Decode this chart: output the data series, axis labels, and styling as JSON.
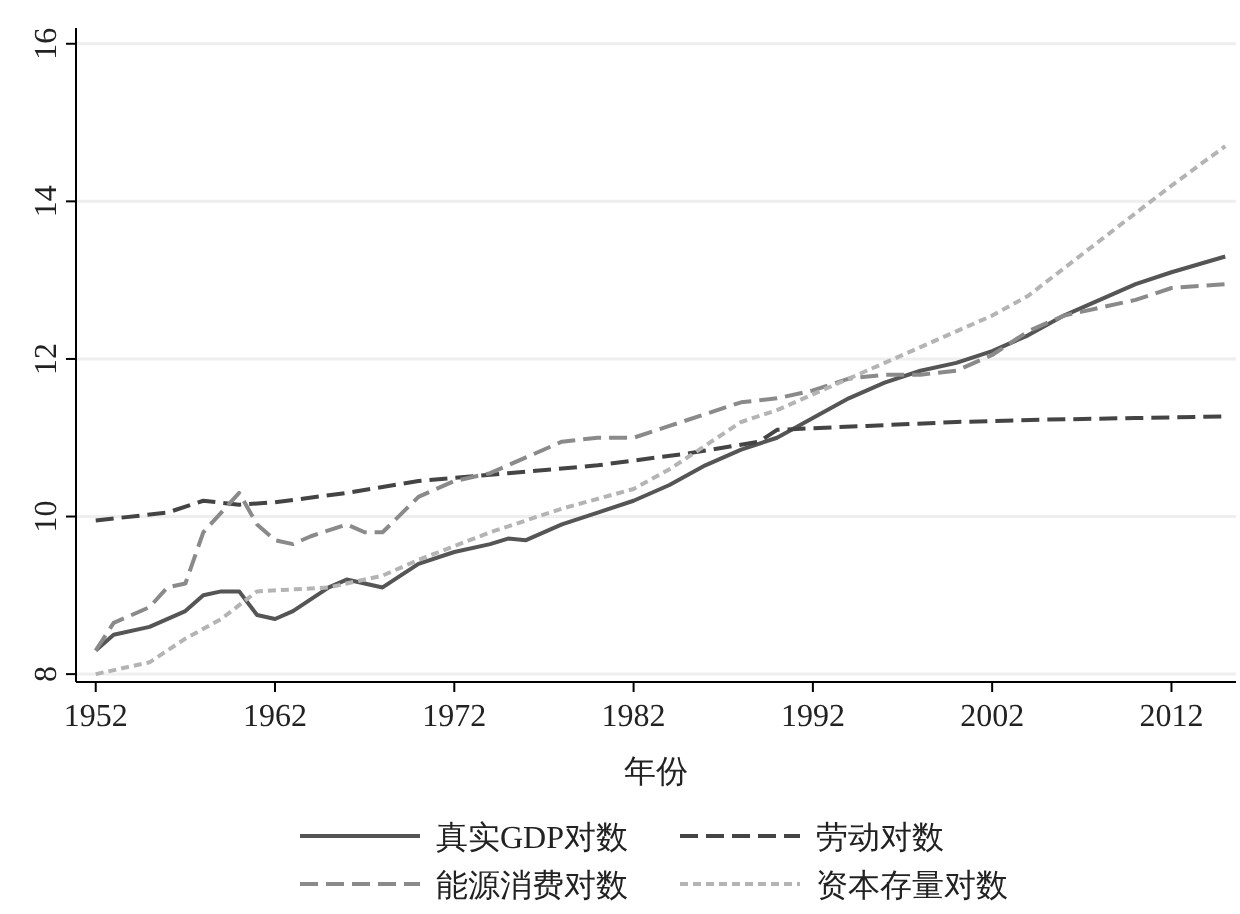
{
  "chart_data": {
    "type": "line",
    "xlabel": "年份",
    "xlim": [
      1950.9,
      2015.6
    ],
    "xticks": [
      1952,
      1962,
      1972,
      1982,
      1992,
      2002,
      2012
    ],
    "ylim": [
      7.9,
      16.2
    ],
    "yticks": [
      8,
      10,
      12,
      14,
      16
    ],
    "grid": "y",
    "legend": "bottom",
    "series": [
      {
        "name": "真实GDP对数",
        "color": "#555555",
        "line_style": "solid",
        "x": [
          1952,
          1953,
          1955,
          1957,
          1958,
          1959,
          1960,
          1961,
          1962,
          1963,
          1965,
          1966,
          1967,
          1968,
          1970,
          1972,
          1974,
          1975,
          1976,
          1978,
          1980,
          1982,
          1984,
          1986,
          1988,
          1990,
          1992,
          1994,
          1996,
          1998,
          2000,
          2002,
          2004,
          2006,
          2008,
          2010,
          2012,
          2015
        ],
        "values": [
          8.3,
          8.5,
          8.6,
          8.8,
          9.0,
          9.05,
          9.05,
          8.75,
          8.7,
          8.8,
          9.1,
          9.2,
          9.15,
          9.1,
          9.4,
          9.55,
          9.65,
          9.72,
          9.7,
          9.9,
          10.05,
          10.2,
          10.4,
          10.65,
          10.85,
          11.0,
          11.25,
          11.5,
          11.7,
          11.85,
          11.95,
          12.1,
          12.3,
          12.55,
          12.75,
          12.95,
          13.1,
          13.3
        ]
      },
      {
        "name": "劳动对数",
        "color": "#444444",
        "line_style": "dashed",
        "x": [
          1952,
          1956,
          1958,
          1960,
          1962,
          1966,
          1970,
          1975,
          1980,
          1985,
          1989,
          1990,
          1995,
          2000,
          2005,
          2010,
          2015
        ],
        "values": [
          9.95,
          10.05,
          10.2,
          10.15,
          10.18,
          10.3,
          10.45,
          10.55,
          10.65,
          10.8,
          10.95,
          11.1,
          11.15,
          11.2,
          11.23,
          11.25,
          11.27
        ]
      },
      {
        "name": "能源消费对数",
        "color": "#8a8a8a",
        "line_style": "dashed",
        "x": [
          1952,
          1953,
          1955,
          1956,
          1957,
          1958,
          1960,
          1961,
          1962,
          1963,
          1964,
          1966,
          1967,
          1968,
          1970,
          1972,
          1974,
          1976,
          1978,
          1980,
          1982,
          1984,
          1986,
          1988,
          1990,
          1992,
          1994,
          1996,
          1998,
          2000,
          2002,
          2004,
          2006,
          2008,
          2010,
          2012,
          2015
        ],
        "values": [
          8.3,
          8.65,
          8.85,
          9.1,
          9.15,
          9.8,
          10.3,
          9.9,
          9.7,
          9.65,
          9.75,
          9.9,
          9.8,
          9.8,
          10.25,
          10.45,
          10.55,
          10.75,
          10.95,
          11.0,
          11.0,
          11.15,
          11.3,
          11.45,
          11.5,
          11.6,
          11.75,
          11.8,
          11.8,
          11.85,
          12.05,
          12.35,
          12.55,
          12.65,
          12.75,
          12.9,
          12.95
        ]
      },
      {
        "name": "资本存量对数",
        "color": "#b4b4b4",
        "line_style": "dotted",
        "x": [
          1952,
          1955,
          1957,
          1959,
          1961,
          1965,
          1968,
          1970,
          1974,
          1978,
          1982,
          1984,
          1986,
          1988,
          1990,
          1992,
          1994,
          1996,
          1998,
          2000,
          2002,
          2004,
          2006,
          2008,
          2010,
          2012,
          2015
        ],
        "values": [
          8.0,
          8.15,
          8.45,
          8.7,
          9.05,
          9.1,
          9.25,
          9.45,
          9.8,
          10.1,
          10.35,
          10.6,
          10.9,
          11.2,
          11.35,
          11.55,
          11.75,
          11.95,
          12.15,
          12.35,
          12.55,
          12.8,
          13.15,
          13.5,
          13.85,
          14.2,
          14.7
        ]
      }
    ]
  }
}
